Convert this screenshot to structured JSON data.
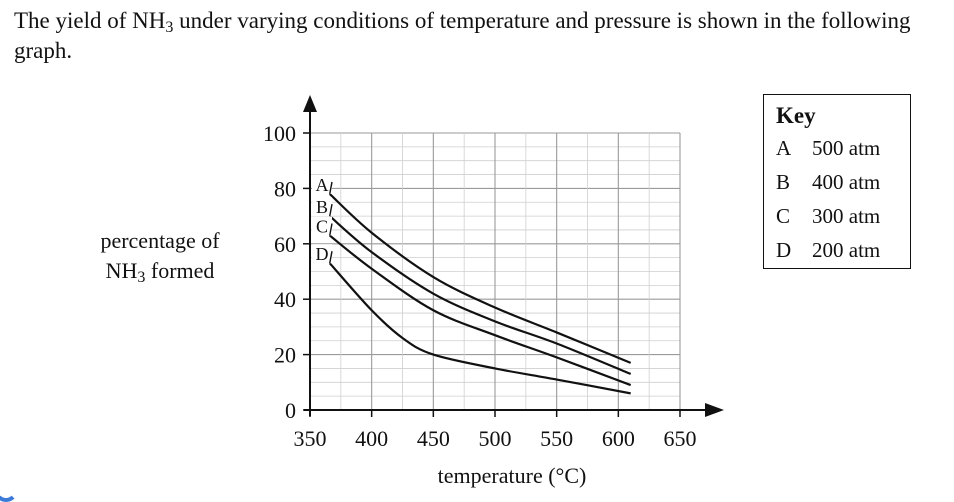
{
  "question": {
    "intro_before": "The yield of NH",
    "intro_sub": "3",
    "intro_after": " under varying conditions of temperature and pressure is shown in the following graph."
  },
  "chart_data": {
    "type": "line",
    "title": "",
    "xlabel": "temperature (°C)",
    "ylabel_before": "percentage of",
    "ylabel_line2": "NH",
    "ylabel_sub": "3",
    "ylabel_after": " formed",
    "xlim": [
      350,
      650
    ],
    "ylim": [
      0,
      100
    ],
    "x_ticks": [
      350,
      400,
      450,
      500,
      550,
      600,
      650
    ],
    "y_ticks": [
      0,
      20,
      40,
      60,
      80,
      100
    ],
    "grid": true,
    "series": [
      {
        "name": "A",
        "points": [
          [
            366,
            78
          ],
          [
            400,
            64
          ],
          [
            450,
            48
          ],
          [
            500,
            37
          ],
          [
            550,
            28
          ],
          [
            610,
            17
          ]
        ]
      },
      {
        "name": "B",
        "points": [
          [
            366,
            70
          ],
          [
            400,
            57
          ],
          [
            450,
            42
          ],
          [
            500,
            32
          ],
          [
            550,
            24
          ],
          [
            610,
            13
          ]
        ]
      },
      {
        "name": "C",
        "points": [
          [
            366,
            63
          ],
          [
            400,
            51
          ],
          [
            450,
            36
          ],
          [
            500,
            27
          ],
          [
            550,
            19
          ],
          [
            610,
            9
          ]
        ]
      },
      {
        "name": "D",
        "points": [
          [
            366,
            53
          ],
          [
            400,
            36
          ],
          [
            425,
            26
          ],
          [
            450,
            20
          ],
          [
            500,
            15
          ],
          [
            550,
            11
          ],
          [
            610,
            6
          ]
        ]
      }
    ]
  },
  "key": {
    "title": "Key",
    "entries": [
      {
        "letter": "A",
        "pressure": "500 atm"
      },
      {
        "letter": "B",
        "pressure": "400 atm"
      },
      {
        "letter": "C",
        "pressure": "300 atm"
      },
      {
        "letter": "D",
        "pressure": "200 atm"
      }
    ]
  }
}
